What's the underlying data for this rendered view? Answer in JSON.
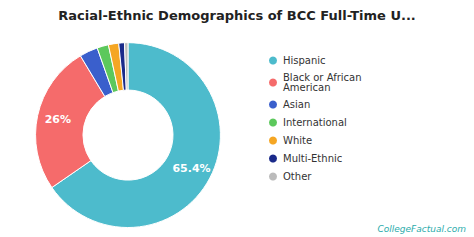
{
  "chart_data": {
    "type": "pie",
    "title": "Racial-Ethnic Demographics of BCC Full-Time U...",
    "categories": [
      "Hispanic",
      "Black or African\nAmerican",
      "Asian",
      "International",
      "White",
      "Multi-Ethnic",
      "Other"
    ],
    "values": [
      65.4,
      26.0,
      3.2,
      2.0,
      1.8,
      1.0,
      0.6
    ],
    "colors": [
      "#4DBBCC",
      "#F56B6B",
      "#3A5FCC",
      "#5CC85C",
      "#F5A623",
      "#1A2A8A",
      "#BBBBBB"
    ],
    "data_labels": true,
    "value_labels": [
      "65.4%",
      "26%",
      null,
      null,
      null,
      null,
      null
    ],
    "legend": "right",
    "annotations": [
      "CollegeFactual.com"
    ]
  }
}
